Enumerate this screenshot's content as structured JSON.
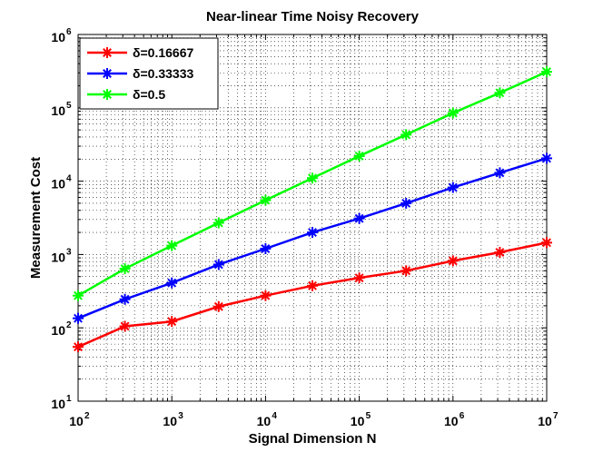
{
  "chart_data": {
    "type": "line",
    "title": "Near-linear Time Noisy Recovery",
    "xlabel": "Signal Dimension N",
    "ylabel": "Measurement Cost",
    "xscale": "log",
    "yscale": "log",
    "xlim": [
      100,
      10000000
    ],
    "ylim": [
      10,
      1000000
    ],
    "grid": true,
    "legend_position": "top-left",
    "x_tick_labels": [
      {
        "base": "10",
        "exp": "2"
      },
      {
        "base": "10",
        "exp": "3"
      },
      {
        "base": "10",
        "exp": "4"
      },
      {
        "base": "10",
        "exp": "5"
      },
      {
        "base": "10",
        "exp": "6"
      },
      {
        "base": "10",
        "exp": "7"
      }
    ],
    "y_tick_labels": [
      {
        "base": "10",
        "exp": "1"
      },
      {
        "base": "10",
        "exp": "2"
      },
      {
        "base": "10",
        "exp": "3"
      },
      {
        "base": "10",
        "exp": "4"
      },
      {
        "base": "10",
        "exp": "5"
      },
      {
        "base": "10",
        "exp": "6"
      }
    ],
    "x": [
      100,
      316,
      1000,
      3162,
      10000,
      31623,
      100000,
      316228,
      1000000,
      3162278,
      10000000
    ],
    "series": [
      {
        "name": "δ=0.16667",
        "color": "#ff0000",
        "marker": "asterisk",
        "values": [
          55,
          105,
          122,
          195,
          275,
          375,
          480,
          600,
          820,
          1070,
          1450
        ]
      },
      {
        "name": "δ=0.33333",
        "color": "#0000ff",
        "marker": "asterisk",
        "values": [
          135,
          245,
          410,
          730,
          1200,
          2000,
          3100,
          5000,
          8200,
          13000,
          20500
        ]
      },
      {
        "name": "δ=0.5",
        "color": "#00ff00",
        "marker": "asterisk",
        "values": [
          275,
          640,
          1320,
          2700,
          5500,
          11000,
          22000,
          43000,
          85000,
          160000,
          310000
        ]
      }
    ]
  }
}
